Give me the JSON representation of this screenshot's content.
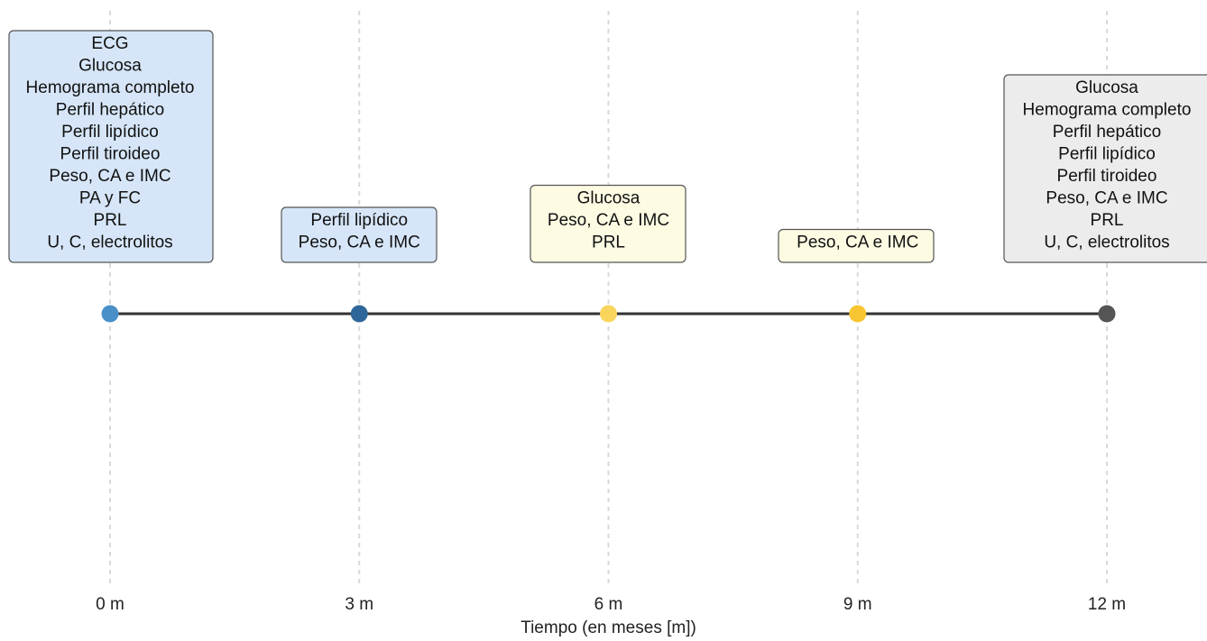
{
  "chart_data": {
    "type": "timeline",
    "xlabel": "Tiempo (en meses [m])",
    "x_ticks": [
      0,
      3,
      6,
      9,
      12
    ],
    "x_tick_labels": [
      "0 m",
      "3 m",
      "6 m",
      "9 m",
      "12 m"
    ],
    "grid": "vertical dashed at each tick",
    "milestones": [
      {
        "month": 0,
        "dot_color": "#4a90c8",
        "box_fill": "#d6e6f8",
        "items": [
          "ECG",
          "Glucosa",
          "Hemograma completo",
          "Perfil hepático",
          "Perfil lipídico",
          "Perfil tiroideo",
          "Peso, CA e IMC",
          "PA y  FC",
          "PRL",
          "U, C, electrolitos"
        ]
      },
      {
        "month": 3,
        "dot_color": "#2f6699",
        "box_fill": "#d6e6f8",
        "items": [
          "Perfil lipídico",
          "Peso, CA e IMC"
        ]
      },
      {
        "month": 6,
        "dot_color": "#f9d55c",
        "box_fill": "#fefbe3",
        "items": [
          "Glucosa",
          "Peso, CA e IMC",
          "PRL"
        ]
      },
      {
        "month": 9,
        "dot_color": "#f7c531",
        "box_fill": "#fefbe3",
        "items": [
          "Peso, CA e IMC"
        ]
      },
      {
        "month": 12,
        "dot_color": "#555555",
        "box_fill": "#ececec",
        "items": [
          "Glucosa",
          "Hemograma completo",
          "Perfil hepático",
          "Perfil lipídico",
          "Perfil tiroideo",
          "Peso, CA e IMC",
          "PRL",
          "U, C, electrolitos"
        ]
      }
    ]
  }
}
